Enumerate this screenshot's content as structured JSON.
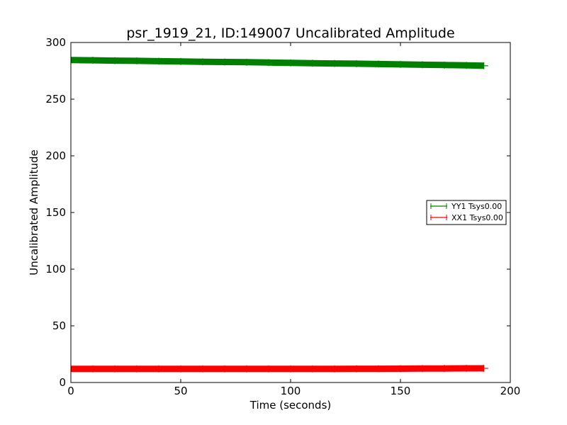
{
  "chart_data": {
    "type": "line",
    "title": "psr_1919_21, ID:149007 Uncalibrated Amplitude",
    "xlabel": "Time (seconds)",
    "ylabel": "Uncalibrated Amplitude",
    "xlim": [
      0,
      200
    ],
    "ylim": [
      0,
      300
    ],
    "xticks": [
      0,
      50,
      100,
      150,
      200
    ],
    "yticks": [
      0,
      50,
      100,
      150,
      200,
      250,
      300
    ],
    "grid": false,
    "legend_position": "center-right",
    "series": [
      {
        "name": "YY1 Tsys0.00",
        "color": "#008000",
        "x": [
          0,
          10,
          20,
          30,
          40,
          50,
          60,
          70,
          80,
          90,
          100,
          110,
          120,
          130,
          140,
          150,
          160,
          170,
          180,
          188
        ],
        "y": [
          284.5,
          284.3,
          284.0,
          283.8,
          283.5,
          283.3,
          283.0,
          282.8,
          282.6,
          282.3,
          282.0,
          281.7,
          281.5,
          281.3,
          281.0,
          280.7,
          280.4,
          280.1,
          279.8,
          279.5
        ]
      },
      {
        "name": "XX1 Tsys0.00",
        "color": "#ff0000",
        "x": [
          0,
          10,
          20,
          30,
          40,
          50,
          60,
          70,
          80,
          90,
          100,
          110,
          120,
          130,
          140,
          150,
          160,
          170,
          180,
          188
        ],
        "y": [
          12.0,
          12.0,
          12.0,
          12.0,
          12.0,
          12.0,
          12.0,
          12.0,
          12.0,
          12.0,
          12.0,
          12.0,
          12.0,
          12.1,
          12.1,
          12.2,
          12.3,
          12.4,
          12.5,
          12.5
        ]
      }
    ]
  }
}
